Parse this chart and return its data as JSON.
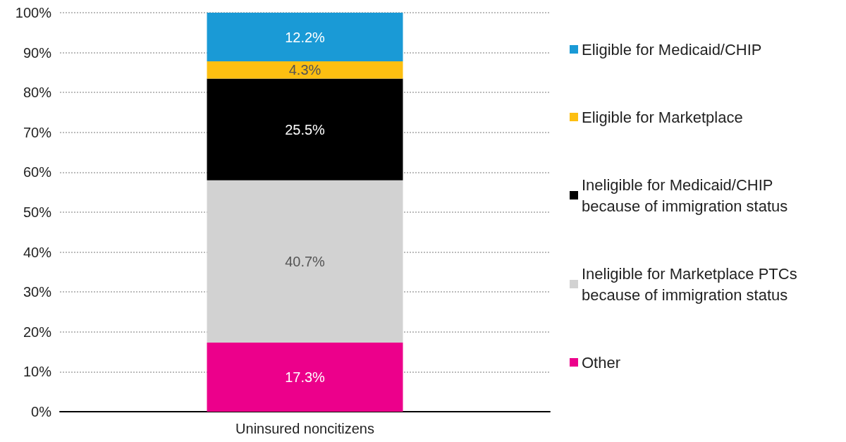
{
  "chart_data": {
    "type": "bar",
    "stacked": true,
    "categories": [
      "Uninsured noncitizens"
    ],
    "series": [
      {
        "name": "Other",
        "color": "#ec008b",
        "values": [
          17.3
        ],
        "value_labels": [
          "17.3%"
        ]
      },
      {
        "name": "Ineligible for Marketplace PTCs because of immigration status",
        "color": "#d2d2d2",
        "values": [
          40.7
        ],
        "value_labels": [
          "40.7%"
        ]
      },
      {
        "name": "Ineligible for Medicaid/CHIP because of immigration status",
        "color": "#000000",
        "values": [
          25.5
        ],
        "value_labels": [
          "25.5%"
        ]
      },
      {
        "name": "Eligible for Marketplace",
        "color": "#fdbf11",
        "values": [
          4.3
        ],
        "value_labels": [
          "4.3%"
        ]
      },
      {
        "name": "Eligible for Medicaid/CHIP",
        "color": "#1a9ad6",
        "values": [
          12.2
        ],
        "value_labels": [
          "12.2%"
        ]
      }
    ],
    "ylim": [
      0,
      100
    ],
    "yticks": [
      {
        "value": 0,
        "label": "0%"
      },
      {
        "value": 10,
        "label": "10%"
      },
      {
        "value": 20,
        "label": "20%"
      },
      {
        "value": 30,
        "label": "30%"
      },
      {
        "value": 40,
        "label": "40%"
      },
      {
        "value": 50,
        "label": "50%"
      },
      {
        "value": 60,
        "label": "60%"
      },
      {
        "value": 70,
        "label": "70%"
      },
      {
        "value": 80,
        "label": "80%"
      },
      {
        "value": 90,
        "label": "90%"
      },
      {
        "value": 100,
        "label": "100%"
      }
    ],
    "grid": "y",
    "legend": "right"
  }
}
